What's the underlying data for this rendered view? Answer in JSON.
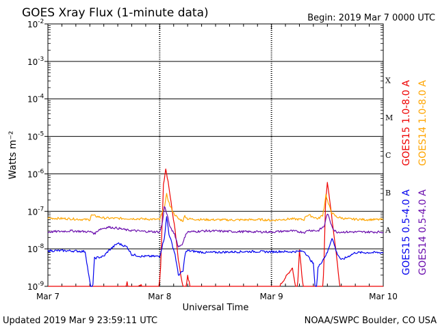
{
  "header": {
    "title": "GOES Xray Flux (1-minute data)",
    "begin": "Begin:  2019 Mar 7 0000 UTC"
  },
  "footer": {
    "updated": "Updated 2019 Mar  9 23:59:11 UTC",
    "credit": "NOAA/SWPC Boulder, CO USA"
  },
  "chart_data": {
    "type": "line",
    "title": "GOES Xray Flux (1-minute data)",
    "xlabel": "Universal Time",
    "ylabel": "Watts m⁻²",
    "y_scale": "log",
    "ylim": [
      1e-09,
      0.01
    ],
    "xlim": [
      0,
      72
    ],
    "x_unit": "hours since 2019 Mar 7 0000 UTC",
    "x_ticks": [
      {
        "x": 0,
        "label": "Mar 7"
      },
      {
        "x": 24,
        "label": "Mar 8"
      },
      {
        "x": 48,
        "label": "Mar 9"
      },
      {
        "x": 72,
        "label": "Mar 10"
      }
    ],
    "y_ticks": [
      {
        "exp": -9,
        "label": "10",
        "sup": "-9"
      },
      {
        "exp": -8,
        "label": "10",
        "sup": "-8"
      },
      {
        "exp": -7,
        "label": "10",
        "sup": "-7"
      },
      {
        "exp": -6,
        "label": "10",
        "sup": "-6"
      },
      {
        "exp": -5,
        "label": "10",
        "sup": "-5"
      },
      {
        "exp": -4,
        "label": "10",
        "sup": "-4"
      },
      {
        "exp": -3,
        "label": "10",
        "sup": "-3"
      },
      {
        "exp": -2,
        "label": "10",
        "sup": "-2"
      }
    ],
    "flare_classes": [
      {
        "label": "A",
        "exp": -7.5
      },
      {
        "label": "B",
        "exp": -6.5
      },
      {
        "label": "C",
        "exp": -5.5
      },
      {
        "label": "M",
        "exp": -4.5
      },
      {
        "label": "X",
        "exp": -3.5
      }
    ],
    "grid": true,
    "legend_position": "right",
    "series": [
      {
        "name": "GOES15 1.0-8.0 A",
        "color": "#ee0000",
        "x": [
          0,
          16.5,
          17,
          17.5,
          18,
          20,
          21.5,
          23.8,
          24.2,
          24.8,
          25.3,
          25.8,
          26.6,
          27.3,
          28,
          28.8,
          29.5,
          30,
          31,
          48,
          52.5,
          53.5,
          54,
          55,
          55.5,
          59,
          59.3,
          59.6,
          60,
          60.5,
          61.2,
          62,
          62.5,
          63,
          72
        ],
        "y_exp": [
          -9.2,
          -9.2,
          -8.9,
          -9.2,
          -9.2,
          -8.95,
          -9.2,
          -9.2,
          -8.5,
          -6.3,
          -5.85,
          -6.2,
          -6.9,
          -7.5,
          -8.3,
          -8.9,
          -9.3,
          -8.7,
          -9.3,
          -9.3,
          -8.5,
          -9.3,
          -8.0,
          -9.3,
          -9.3,
          -9.3,
          -8.2,
          -6.8,
          -6.2,
          -6.7,
          -7.4,
          -8.2,
          -8.8,
          -9.3,
          -9.3
        ]
      },
      {
        "name": "GOES14 1.0-8.0 A",
        "color": "#ffa500",
        "x": [
          0,
          5,
          8,
          9,
          9.3,
          12,
          20,
          24,
          24.5,
          25,
          25.5,
          26.2,
          27,
          28,
          29,
          29.4,
          30,
          33,
          40,
          46,
          48,
          52,
          55,
          55.4,
          56,
          57,
          58,
          59,
          59.3,
          59.7,
          60.2,
          61,
          62,
          64,
          68,
          72
        ],
        "y_exp": [
          -7.18,
          -7.2,
          -7.22,
          -7.22,
          -7.1,
          -7.18,
          -7.2,
          -7.22,
          -7.05,
          -6.9,
          -6.55,
          -6.85,
          -7.05,
          -7.2,
          -7.25,
          -7.12,
          -7.2,
          -7.22,
          -7.23,
          -7.22,
          -7.24,
          -7.2,
          -7.22,
          -7.12,
          -7.1,
          -7.15,
          -7.2,
          -7.1,
          -6.9,
          -6.55,
          -6.8,
          -7.05,
          -7.15,
          -7.2,
          -7.22,
          -7.22
        ]
      },
      {
        "name": "GOES15 0.5-4.0 A",
        "color": "#0000ee",
        "x": [
          0,
          4,
          8,
          9.5,
          10,
          12,
          13,
          15,
          17,
          18,
          20,
          24,
          25,
          25.5,
          26,
          27.3,
          28,
          29,
          29.5,
          30,
          34,
          40,
          44,
          48,
          50,
          52,
          55,
          57,
          57.5,
          58,
          60,
          61,
          62,
          63,
          66,
          72
        ],
        "y_exp": [
          -8.05,
          -8.05,
          -8.07,
          -9.3,
          -8.25,
          -8.2,
          -8.05,
          -7.85,
          -7.95,
          -8.15,
          -8.2,
          -8.2,
          -7.7,
          -7.15,
          -7.6,
          -8.15,
          -8.7,
          -8.6,
          -8.1,
          -8.05,
          -8.1,
          -8.08,
          -8.07,
          -8.08,
          -8.07,
          -8.08,
          -8.06,
          -8.4,
          -9.3,
          -8.5,
          -8.1,
          -7.7,
          -8.1,
          -8.3,
          -8.1,
          -8.1
        ]
      },
      {
        "name": "GOES14 0.5-4.0 A",
        "color": "#6a0dad",
        "x": [
          0,
          5,
          8,
          9.5,
          10,
          11,
          13,
          15,
          17,
          20,
          24,
          24.6,
          25,
          25.6,
          26.3,
          27.2,
          28,
          29,
          29.6,
          30,
          34,
          40,
          48,
          52,
          55.3,
          55.8,
          58,
          59.3,
          60,
          60.7,
          61.4,
          62,
          65,
          68,
          72
        ],
        "y_exp": [
          -7.55,
          -7.52,
          -7.54,
          -7.55,
          -7.6,
          -7.48,
          -7.42,
          -7.45,
          -7.5,
          -7.53,
          -7.55,
          -7.3,
          -6.85,
          -7.1,
          -7.45,
          -7.6,
          -7.95,
          -7.85,
          -7.6,
          -7.55,
          -7.52,
          -7.54,
          -7.55,
          -7.52,
          -7.56,
          -7.5,
          -7.52,
          -7.4,
          -7.05,
          -7.3,
          -7.5,
          -7.55,
          -7.55,
          -7.55,
          -7.55
        ]
      }
    ]
  }
}
